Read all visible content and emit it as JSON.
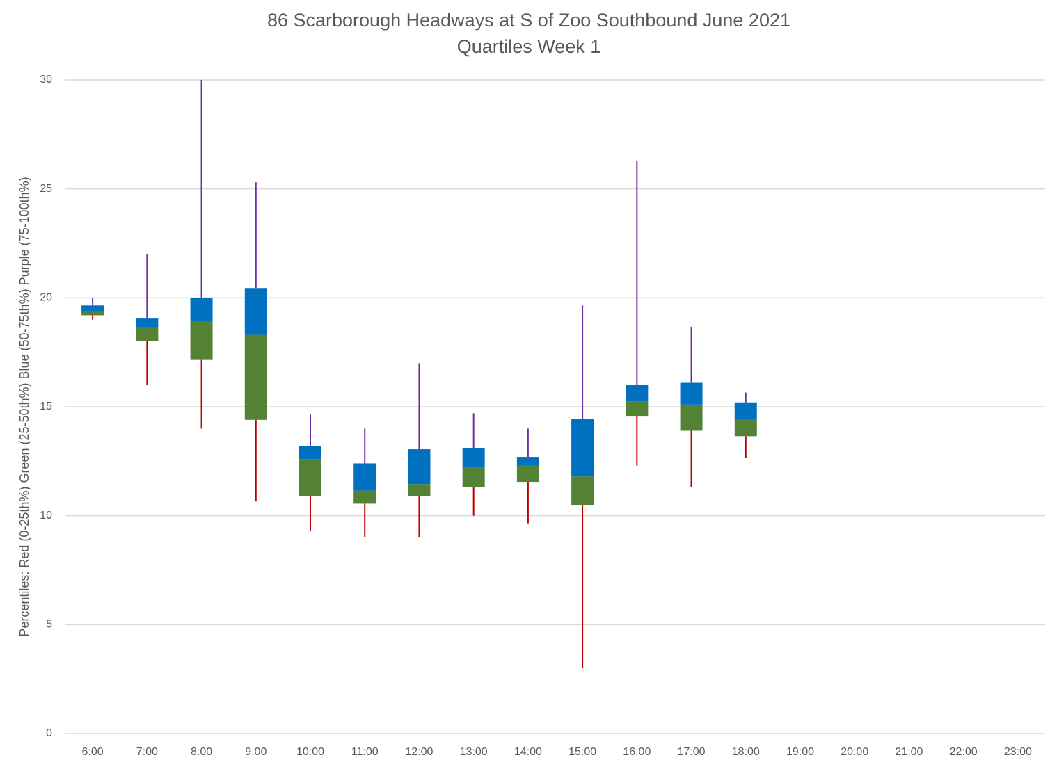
{
  "chart_data": {
    "type": "box",
    "title": "86 Scarborough Headways at S of Zoo Southbound June 2021",
    "subtitle": "Quartiles Week 1",
    "y_label": "Percentiles:  Red (0-25th%)  Green (25-50th%)  Blue (50-75th%)  Purple (75-100th%)",
    "categories": [
      "6:00",
      "7:00",
      "8:00",
      "9:00",
      "10:00",
      "11:00",
      "12:00",
      "13:00",
      "14:00",
      "15:00",
      "16:00",
      "17:00",
      "18:00",
      "19:00",
      "20:00",
      "21:00",
      "22:00",
      "23:00"
    ],
    "low": [
      19,
      16,
      14,
      10.65,
      9.3,
      9,
      9,
      10,
      9.65,
      3,
      12.3,
      11.3,
      12.65,
      null,
      null,
      null,
      null,
      null
    ],
    "q1": [
      19.2,
      18,
      17.15,
      14.4,
      10.9,
      10.55,
      10.9,
      11.3,
      11.55,
      10.5,
      14.55,
      13.9,
      13.65,
      null,
      null,
      null,
      null,
      null
    ],
    "median": [
      19.4,
      18.65,
      18.95,
      18.3,
      12.6,
      11.15,
      11.45,
      12.2,
      12.3,
      11.8,
      15.25,
      15.1,
      14.45,
      null,
      null,
      null,
      null,
      null
    ],
    "q3": [
      19.65,
      19.05,
      20,
      20.45,
      13.2,
      12.4,
      13.05,
      13.1,
      12.7,
      14.45,
      16,
      16.1,
      15.2,
      null,
      null,
      null,
      null,
      null
    ],
    "high": [
      20,
      22,
      30,
      25.3,
      14.65,
      14,
      17,
      14.7,
      14,
      19.65,
      26.3,
      18.65,
      15.65,
      null,
      null,
      null,
      null,
      null
    ],
    "colors": {
      "low": "#c00000",
      "q1": "#548235",
      "median": "#0070c0",
      "high": "#7030a0"
    },
    "ylim": [
      0,
      30
    ],
    "yticks": [
      0,
      5,
      10,
      15,
      20,
      25,
      30
    ],
    "grid": true
  }
}
